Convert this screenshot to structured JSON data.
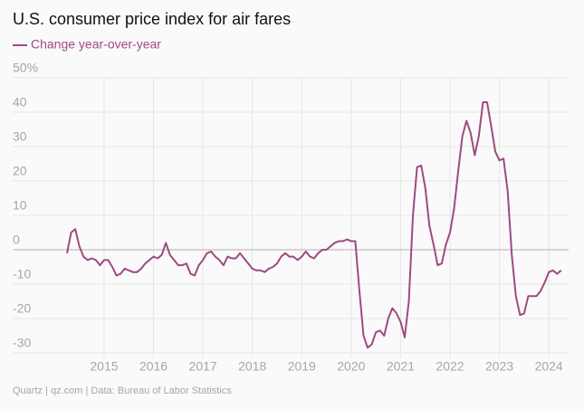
{
  "chart_data": {
    "type": "line",
    "title": "U.S. consumer price index for air fares",
    "source": "Quartz | qz.com | Data: Bureau of Labor Statistics",
    "grid": true,
    "legend": "top-left",
    "xlim": [
      2013.15,
      2024.4
    ],
    "xticks": [
      2015,
      2016,
      2017,
      2018,
      2019,
      2020,
      2021,
      2022,
      2023,
      2024
    ],
    "ylim": [
      -30,
      50
    ],
    "yticks": [
      {
        "value": 50,
        "label": "50%"
      },
      40,
      30,
      20,
      10,
      0,
      -10,
      -20,
      -30
    ],
    "x": [
      2014.25,
      2014.333,
      2014.417,
      2014.5,
      2014.583,
      2014.667,
      2014.75,
      2014.833,
      2014.917,
      2015,
      2015.083,
      2015.167,
      2015.25,
      2015.333,
      2015.417,
      2015.5,
      2015.583,
      2015.667,
      2015.75,
      2015.833,
      2015.917,
      2016,
      2016.083,
      2016.167,
      2016.25,
      2016.333,
      2016.417,
      2016.5,
      2016.583,
      2016.667,
      2016.75,
      2016.833,
      2016.917,
      2017,
      2017.083,
      2017.167,
      2017.25,
      2017.333,
      2017.417,
      2017.5,
      2017.583,
      2017.667,
      2017.75,
      2017.833,
      2017.917,
      2018,
      2018.083,
      2018.167,
      2018.25,
      2018.333,
      2018.417,
      2018.5,
      2018.583,
      2018.667,
      2018.75,
      2018.833,
      2018.917,
      2019,
      2019.083,
      2019.167,
      2019.25,
      2019.333,
      2019.417,
      2019.5,
      2019.583,
      2019.667,
      2019.75,
      2019.833,
      2019.917,
      2020,
      2020.083,
      2020.167,
      2020.25,
      2020.333,
      2020.417,
      2020.5,
      2020.583,
      2020.667,
      2020.75,
      2020.833,
      2020.917,
      2021,
      2021.083,
      2021.167,
      2021.25,
      2021.333,
      2021.417,
      2021.5,
      2021.583,
      2021.667,
      2021.75,
      2021.833,
      2021.917,
      2022,
      2022.083,
      2022.167,
      2022.25,
      2022.333,
      2022.417,
      2022.5,
      2022.583,
      2022.667,
      2022.75,
      2022.833,
      2022.917,
      2023,
      2023.083,
      2023.167,
      2023.25,
      2023.333,
      2023.417,
      2023.5,
      2023.583,
      2023.667,
      2023.75,
      2023.833,
      2023.917,
      2024,
      2024.083,
      2024.167,
      2024.25
    ],
    "series": [
      {
        "name": "Change year-over-year",
        "color": "#9e4a80",
        "values": [
          -1,
          5,
          6,
          1,
          -2,
          -3,
          -2.5,
          -3,
          -4.5,
          -3,
          -3,
          -5,
          -7.5,
          -7,
          -5.5,
          -6,
          -6.5,
          -6.5,
          -5.5,
          -4,
          -3,
          -2,
          -2.5,
          -1.5,
          2,
          -1.5,
          -3,
          -4.5,
          -4.5,
          -4,
          -7,
          -7.5,
          -4.5,
          -3,
          -1,
          -0.5,
          -2,
          -3,
          -4.5,
          -2,
          -2.5,
          -2.5,
          -1,
          -2.5,
          -4,
          -5.5,
          -6,
          -6,
          -6.5,
          -5.5,
          -5,
          -4,
          -2,
          -1,
          -2,
          -2,
          -3,
          -2,
          -0.5,
          -2,
          -2.5,
          -1,
          0,
          0,
          1,
          2,
          2.5,
          2.5,
          3,
          2.5,
          2.5,
          -12,
          -25,
          -28.5,
          -27.5,
          -24,
          -23.5,
          -25,
          -20,
          -17,
          -18.5,
          -21,
          -25.5,
          -15,
          10,
          24,
          24.5,
          18,
          7,
          1.5,
          -4.5,
          -4,
          1.5,
          5,
          12,
          23,
          33,
          37.5,
          34,
          27.5,
          33,
          42.9,
          42.9,
          36,
          28.5,
          26,
          26.5,
          17,
          -1.5,
          -13.5,
          -19,
          -18.5,
          -13.5,
          -13.5,
          -13.5,
          -12,
          -9.5,
          -6.5,
          -6,
          -7,
          -6
        ]
      }
    ]
  }
}
